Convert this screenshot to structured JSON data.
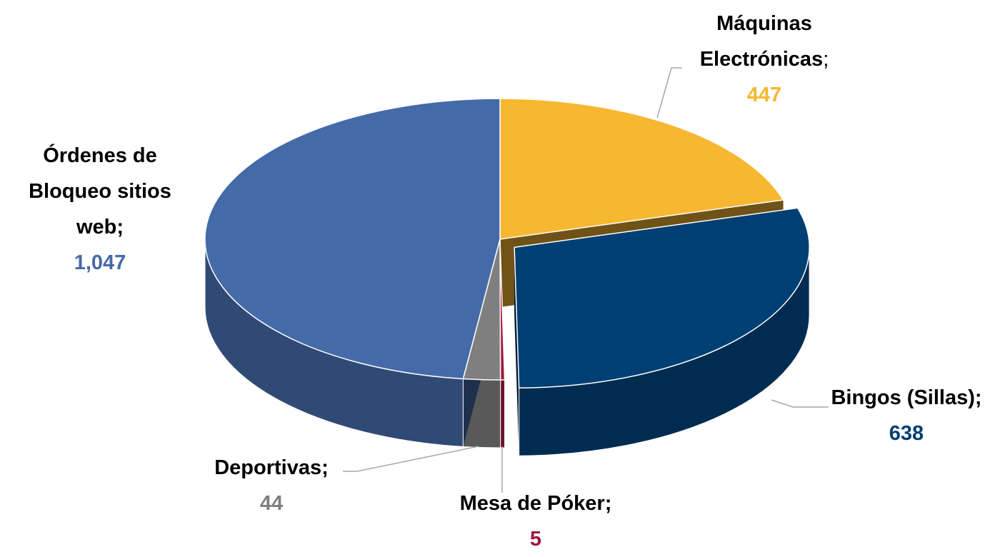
{
  "chart_data": {
    "type": "pie3d",
    "categories": [
      "Máquinas Electrónicas",
      "Bingos (Sillas)",
      "Mesa de Póker",
      "Deportivas",
      "Órdenes de Bloqueo sitios web"
    ],
    "values": [
      447,
      638,
      5,
      44,
      1047
    ],
    "value_labels": [
      "447",
      "638",
      "5",
      "44",
      "1,047"
    ],
    "colors": [
      "#f7b731",
      "#003f73",
      "#a0173a",
      "#7f7f7f",
      "#446aa8"
    ],
    "label_separator": ";"
  }
}
